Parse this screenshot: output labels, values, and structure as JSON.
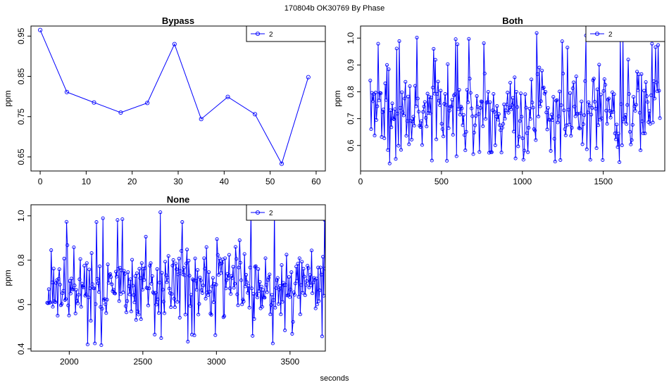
{
  "figure": {
    "suptitle": "170804b    OK30769   By Phase",
    "xlabel": "seconds"
  },
  "colors": {
    "series": "#0000ff",
    "axis": "#000000",
    "background": "#ffffff"
  },
  "chart_data": [
    {
      "id": "bypass",
      "type": "line",
      "title": "Bypass",
      "ylabel": "ppm",
      "xlim": [
        -2,
        62
      ],
      "ylim": [
        0.615,
        0.975
      ],
      "xticks": [
        0,
        10,
        20,
        30,
        40,
        50,
        60
      ],
      "yticks": [
        0.65,
        0.75,
        0.85,
        0.95
      ],
      "yticklabels": [
        "0.65",
        "0.75",
        "0.85",
        "0.95"
      ],
      "legend": {
        "position": "top-right",
        "entries": [
          "2"
        ]
      },
      "series": [
        {
          "name": "2",
          "x": [
            0,
            5.8,
            11.7,
            17.5,
            23.3,
            29.2,
            35.0,
            40.8,
            46.7,
            52.5,
            58.3
          ],
          "y": [
            0.965,
            0.811,
            0.785,
            0.76,
            0.784,
            0.93,
            0.744,
            0.799,
            0.756,
            0.633,
            0.848
          ]
        }
      ]
    },
    {
      "id": "both",
      "type": "line",
      "title": "Both",
      "ylabel": "ppm",
      "xlim": [
        0,
        1880
      ],
      "ylim": [
        0.505,
        1.045
      ],
      "xticks": [
        0,
        500,
        1000,
        1500
      ],
      "yticks": [
        0.6,
        0.7,
        0.8,
        0.9,
        1.0
      ],
      "yticklabels": [
        "0.6",
        "0.7",
        "0.8",
        "0.9",
        "1.0"
      ],
      "legend": {
        "position": "top-right",
        "entries": [
          "2"
        ]
      },
      "series": [
        {
          "name": "2",
          "x_start": 60,
          "x_end": 1850,
          "n": 330,
          "y_min": 0.53,
          "y_max": 1.02,
          "y_center": 0.74,
          "y_spread": 0.085,
          "seed": 7
        }
      ]
    },
    {
      "id": "none",
      "type": "line",
      "title": "None",
      "ylabel": "ppm",
      "xlim": [
        1740,
        3740
      ],
      "ylim": [
        0.39,
        1.05
      ],
      "xticks": [
        2000,
        2500,
        3000,
        3500
      ],
      "yticks": [
        0.4,
        0.6,
        0.8,
        1.0
      ],
      "yticklabels": [
        "0.4",
        "0.6",
        "0.8",
        "1.0"
      ],
      "legend": {
        "position": "top-right",
        "entries": [
          "2"
        ]
      },
      "series": [
        {
          "name": "2",
          "x_start": 1850,
          "x_end": 3740,
          "n": 345,
          "y_min": 0.41,
          "y_max": 1.03,
          "y_center": 0.69,
          "y_spread": 0.085,
          "seed": 19
        }
      ]
    }
  ]
}
